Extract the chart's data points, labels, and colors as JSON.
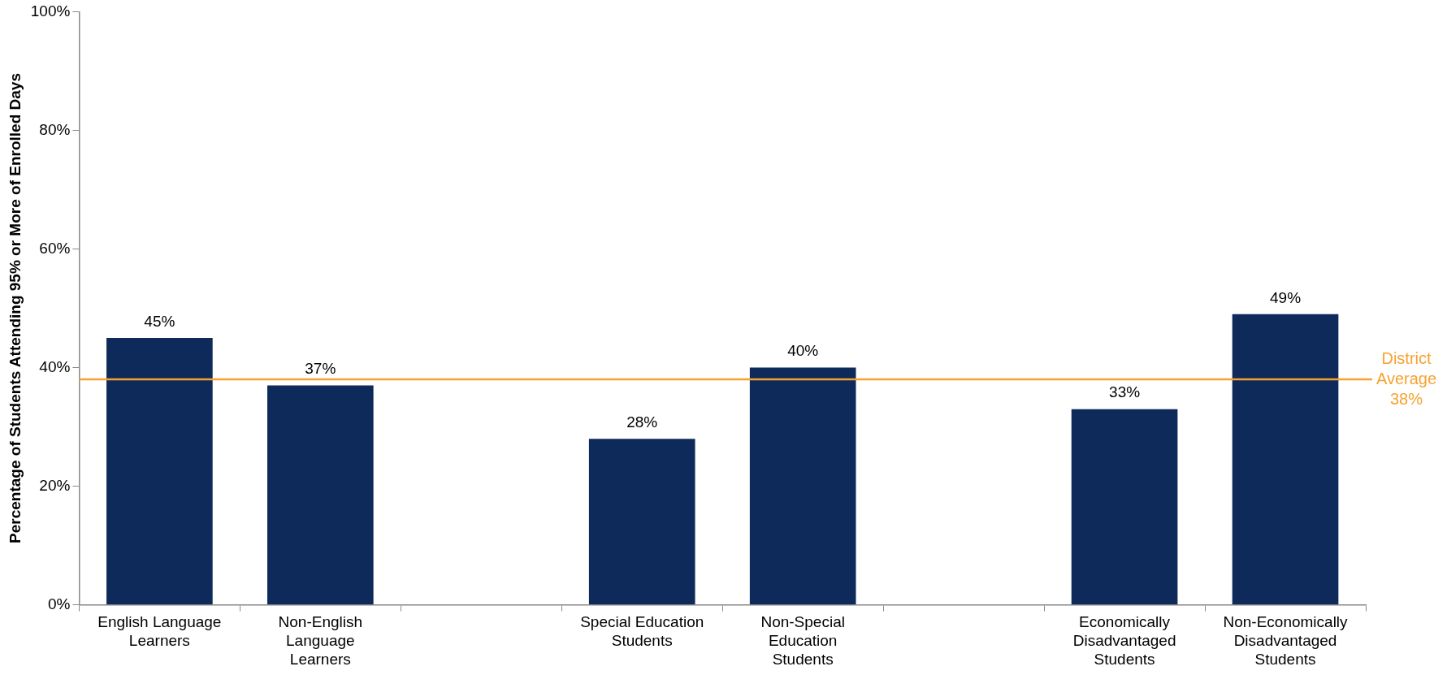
{
  "chart_data": {
    "type": "bar",
    "ylabel": "Percentage of Students Attending 95% or More of Enrolled Days",
    "categories": [
      "English Language\nLearners",
      "Non-English\nLanguage\nLearners",
      null,
      "Special Education\nStudents",
      "Non-Special\nEducation\nStudents",
      null,
      "Economically\nDisadvantaged\nStudents",
      "Non-Economically\nDisadvantaged\nStudents"
    ],
    "values": [
      45,
      37,
      null,
      28,
      40,
      null,
      33,
      49
    ],
    "value_labels": [
      "45%",
      "37%",
      null,
      "28%",
      "40%",
      null,
      "33%",
      "49%"
    ],
    "color": "#0d2a5a",
    "ylim": [
      0,
      100
    ],
    "yticks": [
      {
        "value": 0,
        "label": "0%"
      },
      {
        "value": 20,
        "label": "20%"
      },
      {
        "value": 40,
        "label": "40%"
      },
      {
        "value": 60,
        "label": "60%"
      },
      {
        "value": 80,
        "label": "80%"
      },
      {
        "value": 100,
        "label": "100%"
      }
    ],
    "ref_lines": [
      {
        "axis": "y",
        "value": 38,
        "label": "District\nAverage\n38%",
        "color": "#f7a130"
      }
    ],
    "grid": false,
    "legend": false
  }
}
